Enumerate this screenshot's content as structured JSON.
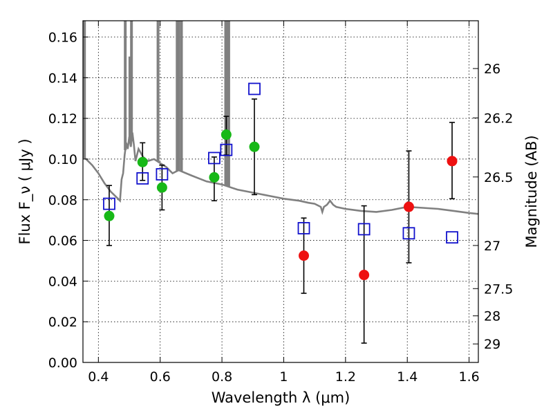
{
  "chart_data": {
    "type": "scatter",
    "xlabel": "Wavelength  λ (μm)",
    "ylabel": "Flux  F_ν  ( μJy )",
    "y2label": "Magnitude (AB)",
    "xlim": [
      0.35,
      1.63
    ],
    "ylim": [
      0.0,
      0.168
    ],
    "grid": true,
    "x_ticks": [
      0.4,
      0.6,
      0.8,
      1.0,
      1.2,
      1.4,
      1.6
    ],
    "x_tick_labels": [
      "0.4",
      "0.6",
      "0.8",
      "1",
      "1.2",
      "1.4",
      "1.6"
    ],
    "y_ticks": [
      0.0,
      0.02,
      0.04,
      0.06,
      0.08,
      0.1,
      0.12,
      0.14,
      0.16
    ],
    "y_tick_labels": [
      "0.00",
      "0.02",
      "0.04",
      "0.06",
      "0.08",
      "0.10",
      "0.12",
      "0.14",
      "0.16"
    ],
    "y2_ticks": [
      {
        "label": "26",
        "flux": 0.1445
      },
      {
        "label": "26.2",
        "flux": 0.1202
      },
      {
        "label": "26.5",
        "flux": 0.0912
      },
      {
        "label": "27",
        "flux": 0.0575
      },
      {
        "label": "27.5",
        "flux": 0.0363
      },
      {
        "label": "28",
        "flux": 0.0229
      },
      {
        "label": "29",
        "flux": 0.0091
      }
    ],
    "series": [
      {
        "marker": "circle",
        "color": "#17b817",
        "points": [
          {
            "x": 0.435,
            "y": 0.072,
            "err": [
              0.0575,
              0.087
            ]
          },
          {
            "x": 0.543,
            "y": 0.0985,
            "err": [
              0.0895,
              0.108
            ]
          },
          {
            "x": 0.606,
            "y": 0.086,
            "err": [
              0.075,
              0.097
            ]
          },
          {
            "x": 0.775,
            "y": 0.091,
            "err": [
              0.0795,
              0.101
            ]
          },
          {
            "x": 0.814,
            "y": 0.112,
            "err": [
              0.102,
              0.121
            ]
          },
          {
            "x": 0.905,
            "y": 0.106,
            "err": [
              0.0825,
              0.1295
            ]
          }
        ]
      },
      {
        "marker": "circle",
        "color": "#ee1111",
        "points": [
          {
            "x": 1.065,
            "y": 0.0525,
            "err": [
              0.034,
              0.071
            ]
          },
          {
            "x": 1.26,
            "y": 0.043,
            "err": [
              0.0095,
              0.077
            ]
          },
          {
            "x": 1.405,
            "y": 0.0765,
            "err": [
              0.049,
              0.104
            ]
          },
          {
            "x": 1.545,
            "y": 0.099,
            "err": [
              0.0805,
              0.118
            ]
          }
        ]
      },
      {
        "marker": "open-square",
        "color": "#1111cc",
        "points": [
          {
            "x": 0.435,
            "y": 0.078
          },
          {
            "x": 0.543,
            "y": 0.0905
          },
          {
            "x": 0.606,
            "y": 0.0925
          },
          {
            "x": 0.775,
            "y": 0.1005
          },
          {
            "x": 0.814,
            "y": 0.1045
          },
          {
            "x": 0.905,
            "y": 0.1345
          },
          {
            "x": 1.065,
            "y": 0.066
          },
          {
            "x": 1.26,
            "y": 0.0655
          },
          {
            "x": 1.405,
            "y": 0.0635
          },
          {
            "x": 1.545,
            "y": 0.0615
          }
        ]
      },
      {
        "marker": "line",
        "color": "#808080",
        "points": [
          {
            "x": 0.35,
            "y": 0.101
          },
          {
            "x": 0.36,
            "y": 0.1
          },
          {
            "x": 0.38,
            "y": 0.097
          },
          {
            "x": 0.4,
            "y": 0.093
          },
          {
            "x": 0.42,
            "y": 0.088
          },
          {
            "x": 0.44,
            "y": 0.084
          },
          {
            "x": 0.46,
            "y": 0.081
          },
          {
            "x": 0.47,
            "y": 0.0795
          },
          {
            "x": 0.475,
            "y": 0.09
          },
          {
            "x": 0.48,
            "y": 0.093
          },
          {
            "x": 0.485,
            "y": 0.102
          },
          {
            "x": 0.49,
            "y": 0.108
          },
          {
            "x": 0.495,
            "y": 0.105
          },
          {
            "x": 0.5,
            "y": 0.111
          },
          {
            "x": 0.505,
            "y": 0.106
          },
          {
            "x": 0.51,
            "y": 0.113
          },
          {
            "x": 0.515,
            "y": 0.107
          },
          {
            "x": 0.52,
            "y": 0.099
          },
          {
            "x": 0.53,
            "y": 0.105
          },
          {
            "x": 0.545,
            "y": 0.101
          },
          {
            "x": 0.56,
            "y": 0.099
          },
          {
            "x": 0.58,
            "y": 0.1
          },
          {
            "x": 0.6,
            "y": 0.098
          },
          {
            "x": 0.62,
            "y": 0.096
          },
          {
            "x": 0.64,
            "y": 0.093
          },
          {
            "x": 0.66,
            "y": 0.0945
          },
          {
            "x": 0.7,
            "y": 0.092
          },
          {
            "x": 0.75,
            "y": 0.089
          },
          {
            "x": 0.8,
            "y": 0.0875
          },
          {
            "x": 0.85,
            "y": 0.085
          },
          {
            "x": 0.9,
            "y": 0.0835
          },
          {
            "x": 0.95,
            "y": 0.082
          },
          {
            "x": 1.0,
            "y": 0.0805
          },
          {
            "x": 1.05,
            "y": 0.0795
          },
          {
            "x": 1.08,
            "y": 0.0785
          },
          {
            "x": 1.1,
            "y": 0.078
          },
          {
            "x": 1.12,
            "y": 0.0765
          },
          {
            "x": 1.125,
            "y": 0.074
          },
          {
            "x": 1.13,
            "y": 0.0765
          },
          {
            "x": 1.14,
            "y": 0.0775
          },
          {
            "x": 1.15,
            "y": 0.0795
          },
          {
            "x": 1.16,
            "y": 0.0775
          },
          {
            "x": 1.17,
            "y": 0.0765
          },
          {
            "x": 1.2,
            "y": 0.0755
          },
          {
            "x": 1.25,
            "y": 0.0745
          },
          {
            "x": 1.3,
            "y": 0.074
          },
          {
            "x": 1.35,
            "y": 0.075
          },
          {
            "x": 1.4,
            "y": 0.0765
          },
          {
            "x": 1.45,
            "y": 0.076
          },
          {
            "x": 1.5,
            "y": 0.0755
          },
          {
            "x": 1.55,
            "y": 0.0745
          },
          {
            "x": 1.6,
            "y": 0.0735
          },
          {
            "x": 1.63,
            "y": 0.073
          }
        ],
        "emission_lines": [
          {
            "x": 0.355,
            "peak": 0.17
          },
          {
            "x": 0.487,
            "peak": 0.17
          },
          {
            "x": 0.502,
            "peak": 0.15
          },
          {
            "x": 0.507,
            "peak": 0.17
          },
          {
            "x": 0.593,
            "peak": 0.17
          },
          {
            "x": 0.655,
            "peak": 0.17
          },
          {
            "x": 0.66,
            "peak": 0.17
          },
          {
            "x": 0.669,
            "peak": 0.17
          },
          {
            "x": 0.812,
            "peak": 0.17
          },
          {
            "x": 0.817,
            "peak": 0.17
          },
          {
            "x": 0.822,
            "peak": 0.17
          }
        ]
      }
    ]
  }
}
